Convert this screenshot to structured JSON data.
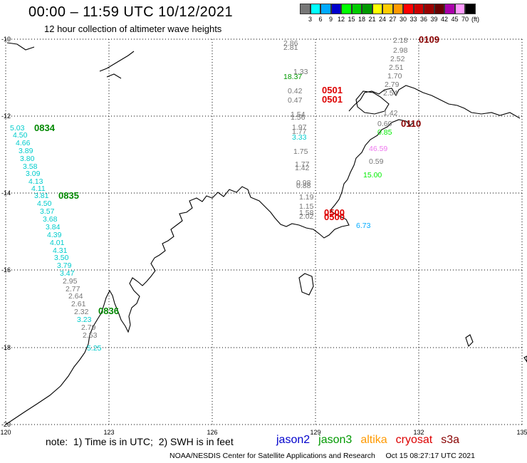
{
  "header": {
    "title": "00:00 – 11:59 UTC 10/12/2021",
    "subtitle": "12 hour collection of altimeter wave heights"
  },
  "scale": {
    "labels": [
      "3",
      "6",
      "9",
      "12",
      "15",
      "18",
      "21",
      "24",
      "27",
      "30",
      "33",
      "36",
      "39",
      "42",
      "45",
      "70",
      "(ft)"
    ],
    "colors": [
      "#777777",
      "#00ffff",
      "#00aaff",
      "#0000cc",
      "#00ff00",
      "#00cc00",
      "#009900",
      "#ffff00",
      "#ffcc00",
      "#ff9900",
      "#ff0000",
      "#cc0000",
      "#990000",
      "#660000",
      "#aa00aa",
      "#ff99ff",
      "#000000"
    ]
  },
  "axes": {
    "lon_labels": [
      "120",
      "123",
      "126",
      "129",
      "132",
      "135"
    ],
    "lat_labels": [
      "-10",
      "-12",
      "-14",
      "-16",
      "-18",
      "-20"
    ]
  },
  "passes": [
    {
      "label": "0834",
      "color": "#008800"
    },
    {
      "label": "0835",
      "color": "#008800"
    },
    {
      "label": "0836",
      "color": "#008800"
    },
    {
      "label": "0109",
      "color": "#880000"
    },
    {
      "label": "0110",
      "color": "#880000"
    },
    {
      "label": "0501",
      "color": "#dd0000"
    },
    {
      "label": "0501",
      "color": "#dd0000"
    },
    {
      "label": "0500",
      "color": "#dd0000"
    },
    {
      "label": "0500",
      "color": "#dd0000"
    }
  ],
  "wave_values": [
    {
      "v": "5.03",
      "c": "#00cccc"
    },
    {
      "v": "4.50",
      "c": "#00cccc"
    },
    {
      "v": "4.66",
      "c": "#00cccc"
    },
    {
      "v": "3.89",
      "c": "#00cccc"
    },
    {
      "v": "3.80",
      "c": "#00cccc"
    },
    {
      "v": "3.58",
      "c": "#00cccc"
    },
    {
      "v": "3.09",
      "c": "#00cccc"
    },
    {
      "v": "4.13",
      "c": "#00cccc"
    },
    {
      "v": "4.11",
      "c": "#00cccc"
    },
    {
      "v": "3.81",
      "c": "#00cccc"
    },
    {
      "v": "4.50",
      "c": "#00cccc"
    },
    {
      "v": "3.57",
      "c": "#00cccc"
    },
    {
      "v": "3.68",
      "c": "#00cccc"
    },
    {
      "v": "3.84",
      "c": "#00cccc"
    },
    {
      "v": "4.39",
      "c": "#00cccc"
    },
    {
      "v": "4.01",
      "c": "#00cccc"
    },
    {
      "v": "4.31",
      "c": "#00cccc"
    },
    {
      "v": "3.50",
      "c": "#00cccc"
    },
    {
      "v": "3.79",
      "c": "#00cccc"
    },
    {
      "v": "3.47",
      "c": "#00cccc"
    },
    {
      "v": "2.95",
      "c": "#777777"
    },
    {
      "v": "2.77",
      "c": "#777777"
    },
    {
      "v": "2.64",
      "c": "#777777"
    },
    {
      "v": "2.61",
      "c": "#777777"
    },
    {
      "v": "2.32",
      "c": "#777777"
    },
    {
      "v": "3.23",
      "c": "#00cccc"
    },
    {
      "v": "2.79",
      "c": "#777777"
    },
    {
      "v": "2.53",
      "c": "#777777"
    },
    {
      "v": "5.25",
      "c": "#00cccc"
    },
    {
      "v": "2.18",
      "c": "#777777"
    },
    {
      "v": "2.98",
      "c": "#777777"
    },
    {
      "v": "2.52",
      "c": "#777777"
    },
    {
      "v": "2.51",
      "c": "#777777"
    },
    {
      "v": "1.70",
      "c": "#777777"
    },
    {
      "v": "2.79",
      "c": "#777777"
    },
    {
      "v": "2.54",
      "c": "#777777"
    },
    {
      "v": "2.86",
      "c": "#777777"
    },
    {
      "v": "2.81",
      "c": "#777777"
    },
    {
      "v": "1.33",
      "c": "#777777"
    },
    {
      "v": "18.37",
      "c": "#009900"
    },
    {
      "v": "0.42",
      "c": "#777777"
    },
    {
      "v": "0.47",
      "c": "#777777"
    },
    {
      "v": "1.54",
      "c": "#777777"
    },
    {
      "v": "1.56",
      "c": "#777777"
    },
    {
      "v": "1.97",
      "c": "#777777"
    },
    {
      "v": "1.77",
      "c": "#777777"
    },
    {
      "v": "3.33",
      "c": "#00cccc"
    },
    {
      "v": "1.75",
      "c": "#777777"
    },
    {
      "v": "1.77",
      "c": "#777777"
    },
    {
      "v": "1.42",
      "c": "#777777"
    },
    {
      "v": "0.98",
      "c": "#777777"
    },
    {
      "v": "0.88",
      "c": "#777777"
    },
    {
      "v": "1.19",
      "c": "#777777"
    },
    {
      "v": "1.15",
      "c": "#777777"
    },
    {
      "v": "1.58",
      "c": "#777777"
    },
    {
      "v": "2.02",
      "c": "#777777"
    },
    {
      "v": "1.42",
      "c": "#777777"
    },
    {
      "v": "0.60",
      "c": "#777777"
    },
    {
      "v": "0.85",
      "c": "#00ee00"
    },
    {
      "v": "46.59",
      "c": "#ee77ee"
    },
    {
      "v": "0.59",
      "c": "#777777"
    },
    {
      "v": "15.00",
      "c": "#00ee00"
    },
    {
      "v": "6.73",
      "c": "#00aaff"
    }
  ],
  "footer": {
    "note": "note:  1) Time is in UTC;  2) SWH is in feet",
    "credit": "NOAA/NESDIS Center for Satellite Applications and Research     Oct 15 08:27:17 UTC 2021"
  },
  "legend": [
    {
      "label": "jason2",
      "color": "#0000cc"
    },
    {
      "label": "jason3",
      "color": "#009900"
    },
    {
      "label": "altika",
      "color": "#ff9900"
    },
    {
      "label": "cryosat",
      "color": "#dd0000"
    },
    {
      "label": "s3a",
      "color": "#880000"
    }
  ]
}
